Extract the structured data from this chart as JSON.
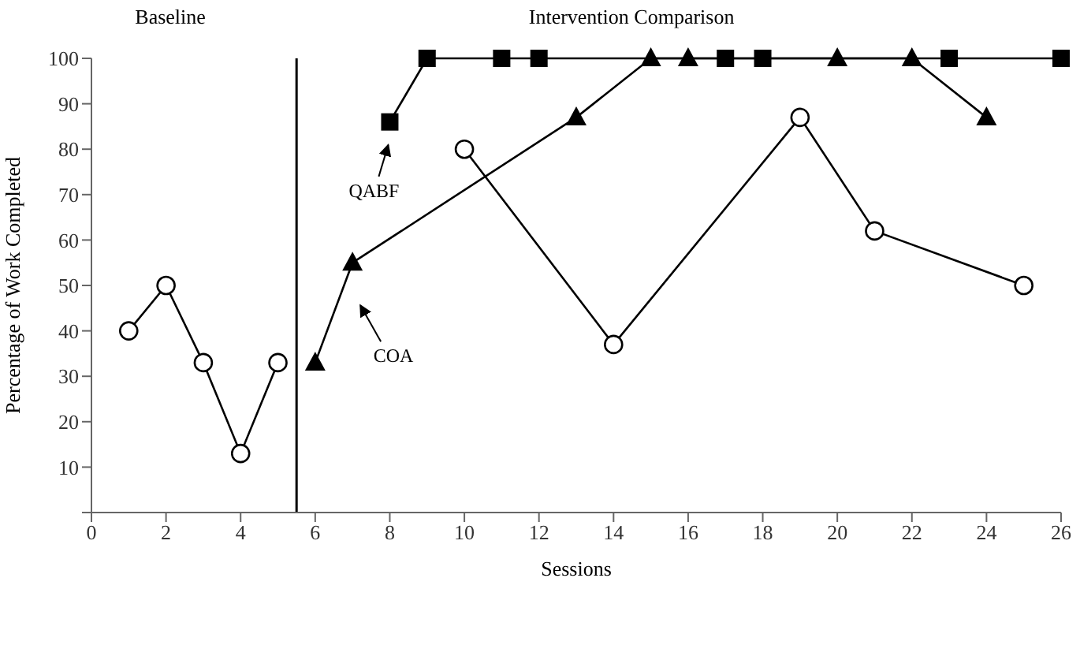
{
  "chart_data": {
    "type": "line",
    "xlabel": "Sessions",
    "ylabel": "Percentage of Work Completed",
    "xlim": [
      0,
      26
    ],
    "xticks": [
      0,
      2,
      4,
      6,
      8,
      10,
      12,
      14,
      16,
      18,
      20,
      22,
      24,
      26
    ],
    "ylim": [
      0,
      100
    ],
    "yticks": [
      {
        "value": 0,
        "label": null
      },
      10,
      20,
      30,
      40,
      50,
      60,
      70,
      80,
      90,
      100
    ],
    "line_style": "solid",
    "legend": "left",
    "series": [
      {
        "color": "#000000",
        "marker": "circle",
        "x": [
          1,
          2,
          3,
          4,
          5
        ],
        "values": [
          40,
          50,
          33,
          13,
          33
        ]
      },
      {
        "color": "#000000",
        "marker": "circle",
        "x": [
          10,
          14,
          19,
          21,
          25
        ],
        "values": [
          80,
          37,
          87,
          62,
          50
        ]
      },
      {
        "name": "COA",
        "color": "#000000",
        "marker": "triangle",
        "x": [
          6,
          7,
          13,
          15,
          16,
          20,
          22,
          24
        ],
        "values": [
          33,
          55,
          87,
          100,
          100,
          100,
          100,
          87
        ]
      },
      {
        "name": "QABF",
        "color": "#000000",
        "marker": "square",
        "x": [
          8,
          9,
          11,
          12,
          17,
          18,
          23,
          26
        ],
        "values": [
          86,
          100,
          100,
          100,
          100,
          100,
          100,
          100
        ]
      }
    ],
    "ref_lines": [
      {
        "axis": "x",
        "value": 5.5,
        "color": "#000000"
      }
    ],
    "annotations": [
      "Baseline",
      "Intervention Comparison"
    ]
  }
}
